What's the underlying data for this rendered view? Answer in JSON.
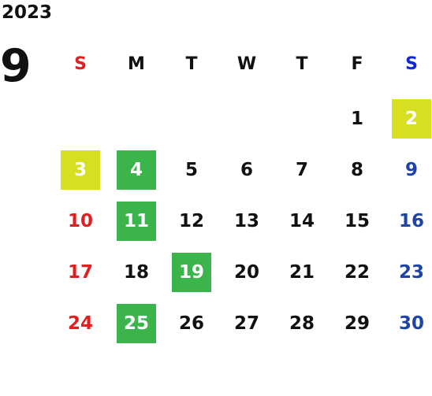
{
  "year": "2023",
  "month": "9",
  "weekdays": [
    "S",
    "M",
    "T",
    "W",
    "T",
    "F",
    "S"
  ],
  "colors": {
    "sunday": "#e02020",
    "saturday": "#1e44a8",
    "highlight_yellow": "#d6e021",
    "highlight_green": "#3ab44b"
  },
  "weeks": [
    [
      {
        "day": "",
        "highlight": ""
      },
      {
        "day": "",
        "highlight": ""
      },
      {
        "day": "",
        "highlight": ""
      },
      {
        "day": "",
        "highlight": ""
      },
      {
        "day": "",
        "highlight": ""
      },
      {
        "day": "1",
        "highlight": ""
      },
      {
        "day": "2",
        "highlight": "yellow"
      }
    ],
    [
      {
        "day": "3",
        "highlight": "yellow"
      },
      {
        "day": "4",
        "highlight": "green"
      },
      {
        "day": "5",
        "highlight": ""
      },
      {
        "day": "6",
        "highlight": ""
      },
      {
        "day": "7",
        "highlight": ""
      },
      {
        "day": "8",
        "highlight": ""
      },
      {
        "day": "9",
        "highlight": ""
      }
    ],
    [
      {
        "day": "10",
        "highlight": ""
      },
      {
        "day": "11",
        "highlight": "green"
      },
      {
        "day": "12",
        "highlight": ""
      },
      {
        "day": "13",
        "highlight": ""
      },
      {
        "day": "14",
        "highlight": ""
      },
      {
        "day": "15",
        "highlight": ""
      },
      {
        "day": "16",
        "highlight": ""
      }
    ],
    [
      {
        "day": "17",
        "highlight": ""
      },
      {
        "day": "18",
        "highlight": ""
      },
      {
        "day": "19",
        "highlight": "green"
      },
      {
        "day": "20",
        "highlight": ""
      },
      {
        "day": "21",
        "highlight": ""
      },
      {
        "day": "22",
        "highlight": ""
      },
      {
        "day": "23",
        "highlight": ""
      }
    ],
    [
      {
        "day": "24",
        "highlight": ""
      },
      {
        "day": "25",
        "highlight": "green"
      },
      {
        "day": "26",
        "highlight": ""
      },
      {
        "day": "27",
        "highlight": ""
      },
      {
        "day": "28",
        "highlight": ""
      },
      {
        "day": "29",
        "highlight": ""
      },
      {
        "day": "30",
        "highlight": ""
      }
    ]
  ]
}
